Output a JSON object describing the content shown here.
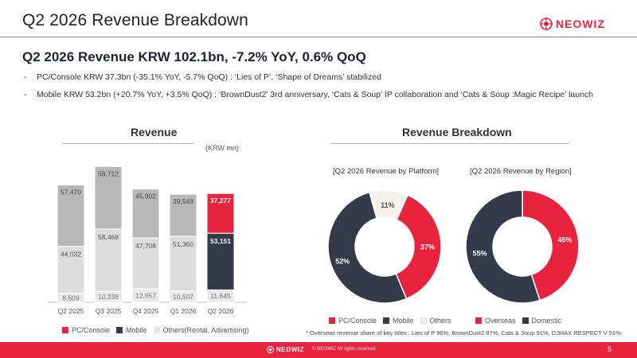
{
  "title": "Q2 2026 Revenue Breakdown",
  "brand": {
    "name": "NEOWIZ",
    "color": "#e8233d",
    "icon": "neowiz-logo-icon"
  },
  "headline": "Q2 2026 Revenue KRW 102.1bn, -7.2% YoY, 0.6% QoQ",
  "bullets": [
    "PC/Console KRW 37.3bn (-35.1% YoY, -5.7% QoQ) : ‘Lies of P’, ‘Shape of Dreams’ stabilized",
    "Mobile KRW 53.2bn (+20.7% YoY, +3.5% QoQ) : ‘BrownDust2’ 3rd anniversary, ‘Cats & Soup’ IP collaboration and ‘Cats & Soup :Magic Recipe’ launch"
  ],
  "bullet_marker": "-",
  "sections": {
    "revenue": "Revenue",
    "breakdown": "Revenue Breakdown",
    "unit": "(KRW mn)"
  },
  "pie_titles": {
    "platform": "[Q2 2026 Revenue by Platform]",
    "region": "[Q2 2026 Revenue by Region]"
  },
  "footnote": "* Overseas revenue share of key titles : Lies of P 96%, BrownDust2 87%, Cats & Soup 91%, DJMAX RESPECT V 51%",
  "footer": {
    "brand": "NEOWIZ",
    "copyright": "© NEOWIZ All rights reserved.",
    "page": "5"
  },
  "colors": {
    "pc_console": "#e8233d",
    "mobile": "#333a4a",
    "others": "#f5f2ee",
    "gray_dark": "#b8b8b8",
    "gray_mid": "#cccccc",
    "gray_light": "#e9e9e9",
    "footer": "#e8233d"
  },
  "chart_data": [
    {
      "type": "bar",
      "stacked": true,
      "title": "Revenue",
      "unit": "(KRW mn)",
      "categories": [
        "Q2 2025",
        "Q3 2025",
        "Q4 2025",
        "Q1 2026",
        "Q2 2026"
      ],
      "series": [
        {
          "name": "Others(Rental, Advertising)",
          "values": [
            8509,
            10238,
            12657,
            10507,
            11645
          ],
          "labels": [
            "8,509",
            "10,238",
            "12,657",
            "10,507",
            "11,645"
          ]
        },
        {
          "name": "Mobile",
          "values": [
            44032,
            58468,
            47708,
            51360,
            53151
          ],
          "labels": [
            "44,032",
            "58,468",
            "47,708",
            "51,360",
            "53,151"
          ]
        },
        {
          "name": "PC/Console",
          "values": [
            57470,
            58712,
            45902,
            39548,
            37277
          ],
          "labels": [
            "57,470",
            "58,712",
            "45,902",
            "39,548",
            "37,277"
          ]
        }
      ],
      "highlight_category": "Q2 2026",
      "legend": "bottom"
    },
    {
      "type": "pie",
      "donut": true,
      "title": "[Q2 2026 Revenue by Platform]",
      "slices": [
        {
          "name": "PC/Console",
          "value": 37,
          "label": "37%",
          "color": "#e8233d"
        },
        {
          "name": "Mobile",
          "value": 52,
          "label": "52%",
          "color": "#333a4a"
        },
        {
          "name": "Others",
          "value": 11,
          "label": "11%",
          "color": "#f5f2ee"
        }
      ],
      "legend": "bottom"
    },
    {
      "type": "pie",
      "donut": true,
      "title": "[Q2 2026 Revenue by Region]",
      "slices": [
        {
          "name": "Overseas",
          "value": 45,
          "label": "45%",
          "color": "#e8233d"
        },
        {
          "name": "Domestic",
          "value": 55,
          "label": "55%",
          "color": "#333a4a"
        }
      ],
      "legend": "bottom"
    }
  ]
}
